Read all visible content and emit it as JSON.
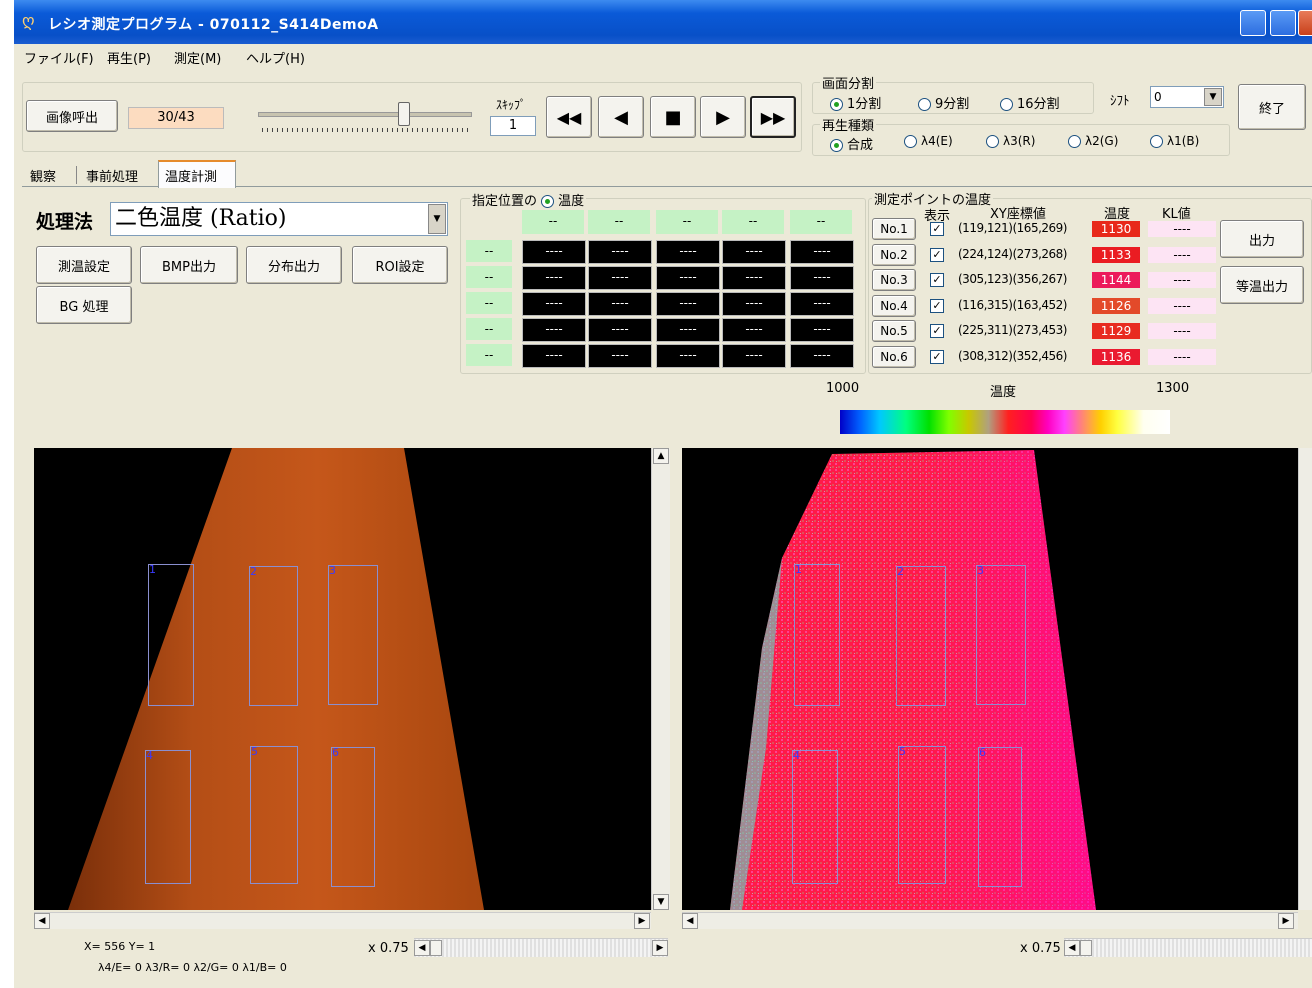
{
  "window": {
    "title": "レシオ測定プログラム - 070112_S414DemoA"
  },
  "menu": [
    "ファイル(F)",
    "再生(P)",
    "測定(M)",
    "ヘルプ(H)"
  ],
  "toolbar": {
    "load_image": "画像呼出",
    "frame": "30/43",
    "skip_label": "ｽｷｯﾌﾟ",
    "skip_value": "1",
    "exit": "終了"
  },
  "screen_split": {
    "label": "画面分割",
    "options": [
      "1分割",
      "9分割",
      "16分割"
    ],
    "selected": "1分割"
  },
  "shift": {
    "label": "ｼﾌﾄ",
    "value": "0"
  },
  "playback_type": {
    "label": "再生種類",
    "options": [
      "合成",
      "λ4(E)",
      "λ3(R)",
      "λ2(G)",
      "λ1(B)"
    ],
    "selected": "合成"
  },
  "tabs": [
    "観察",
    "事前処理",
    "温度計測"
  ],
  "active_tab": "温度計測",
  "method": {
    "label": "処理法",
    "value": "二色温度 (Ratio)"
  },
  "buttons": {
    "temp_setting": "測温設定",
    "bmp_output": "BMP出力",
    "dist_output": "分布出力",
    "roi_setting": "ROI設定",
    "bg": "BG 処理",
    "output": "出力",
    "iso_output": "等温出力"
  },
  "position_temp": {
    "label": "指定位置の",
    "radio": "温度",
    "col_headers": [
      "--",
      "--",
      "--",
      "--",
      "--"
    ],
    "row_headers": [
      "--",
      "--",
      "--",
      "--",
      "--"
    ],
    "cell": "----"
  },
  "points": {
    "label": "測定ポイントの温度",
    "headers": {
      "show": "表示",
      "xy": "XY座標値",
      "temp": "温度",
      "kl": "KL値"
    },
    "rows": [
      {
        "no": "No.1",
        "xy": "(119,121)(165,269)",
        "temp": "1130",
        "kl": "----",
        "color": "#e8291a"
      },
      {
        "no": "No.2",
        "xy": "(224,124)(273,268)",
        "temp": "1133",
        "kl": "----",
        "color": "#ea1c22"
      },
      {
        "no": "No.3",
        "xy": "(305,123)(356,267)",
        "temp": "1144",
        "kl": "----",
        "color": "#ec1a5a"
      },
      {
        "no": "No.4",
        "xy": "(116,315)(163,452)",
        "temp": "1126",
        "kl": "----",
        "color": "#e34a2a"
      },
      {
        "no": "No.5",
        "xy": "(225,311)(273,453)",
        "temp": "1129",
        "kl": "----",
        "color": "#e82b20"
      },
      {
        "no": "No.6",
        "xy": "(308,312)(352,456)",
        "temp": "1136",
        "kl": "----",
        "color": "#ea1a30"
      }
    ]
  },
  "scale": {
    "min": "1000",
    "label": "温度",
    "max": "1300"
  },
  "status": {
    "xy": "X= 556 Y= 1",
    "lambda": "λ4/E= 0 λ3/R= 0 λ2/G= 0 λ1/B= 0",
    "zoom_left": "x 0.75",
    "zoom_right": "x 0.75"
  },
  "roi_labels": [
    "1",
    "2",
    "3",
    "4",
    "5",
    "6"
  ]
}
